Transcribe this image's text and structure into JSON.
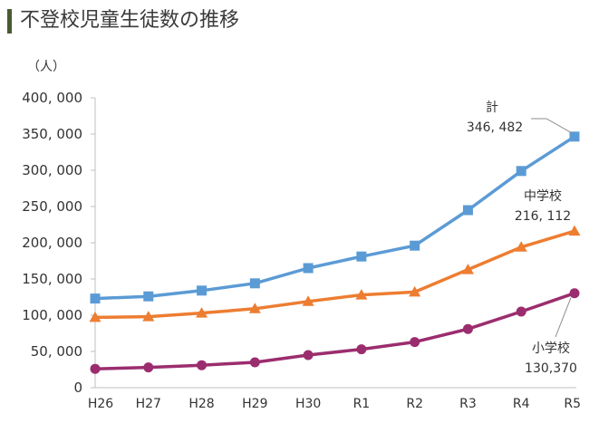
{
  "title": "不登校児童生徒数の推移",
  "accent_color": "#4a5a34",
  "chart_data": {
    "type": "line",
    "title": "不登校児童生徒数の推移",
    "ylabel": "（人）",
    "xlabel": "",
    "categories": [
      "H26",
      "H27",
      "H28",
      "H29",
      "H30",
      "R1",
      "R2",
      "R3",
      "R4",
      "R5"
    ],
    "ylim": [
      0,
      400000
    ],
    "yticks": [
      0,
      50000,
      100000,
      150000,
      200000,
      250000,
      300000,
      350000,
      400000
    ],
    "ytick_labels": [
      "0",
      "50, 000",
      "100, 000",
      "150, 000",
      "200, 000",
      "250, 000",
      "300, 000",
      "350, 000",
      "400, 000"
    ],
    "grid": false,
    "series": [
      {
        "name": "計",
        "color": "#5b9bd5",
        "marker": "square",
        "values": [
          123000,
          126000,
          134000,
          144000,
          165000,
          181000,
          196000,
          245000,
          299000,
          346482
        ],
        "end_label": "346, 482"
      },
      {
        "name": "中学校",
        "color": "#ed7d31",
        "marker": "triangle",
        "values": [
          97000,
          98000,
          103000,
          109000,
          119000,
          128000,
          132000,
          163000,
          194000,
          216112
        ],
        "end_label": "216, 112"
      },
      {
        "name": "小学校",
        "color": "#9b2d6e",
        "marker": "circle",
        "values": [
          26000,
          28000,
          31000,
          35000,
          45000,
          53000,
          63000,
          81000,
          105000,
          130370
        ],
        "end_label": "130,370"
      }
    ]
  }
}
